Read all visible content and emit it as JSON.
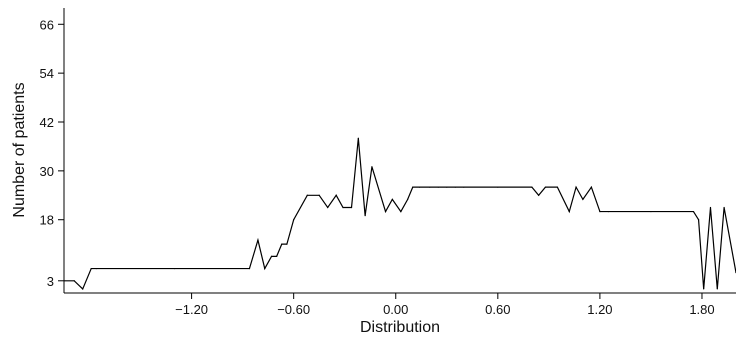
{
  "chart_data": {
    "type": "line",
    "title": "",
    "xlabel": "Distribution",
    "ylabel": "Number of patients",
    "xlim": [
      -1.95,
      2.0
    ],
    "ylim": [
      0,
      70
    ],
    "x_ticks": [
      -1.2,
      -0.6,
      0.0,
      0.6,
      1.2,
      1.8
    ],
    "x_tick_labels": [
      "−1.20",
      "−0.60",
      "0.00",
      "0.60",
      "1.20",
      "1.80"
    ],
    "y_ticks": [
      3,
      18,
      30,
      42,
      54,
      66
    ],
    "y_tick_labels": [
      "3",
      "18",
      "30",
      "42",
      "54",
      "66"
    ],
    "grid": false,
    "legend": "none",
    "line_color": "#000000",
    "series": [
      {
        "x": [
          -1.95,
          -1.89,
          -1.84,
          -1.79,
          -1.76,
          -1.3,
          -0.86,
          -0.81,
          -0.77,
          -0.73,
          -0.7,
          -0.67,
          -0.64,
          -0.6,
          -0.52,
          -0.45,
          -0.4,
          -0.35,
          -0.31,
          -0.26,
          -0.22,
          -0.18,
          -0.14,
          -0.06,
          -0.02,
          0.03,
          0.07,
          0.1,
          0.14,
          0.2,
          0.25,
          0.3,
          0.35,
          0.4,
          0.6,
          0.8,
          0.84,
          0.88,
          0.95,
          1.02,
          1.06,
          1.1,
          1.15,
          1.2,
          1.25,
          1.5,
          1.75,
          1.78,
          1.81,
          1.85,
          1.89,
          1.93,
          2.0
        ],
        "y": [
          3,
          3,
          1,
          6,
          6,
          6,
          6,
          13,
          6,
          9,
          9,
          12,
          12,
          18,
          24,
          24,
          21,
          24,
          21,
          21,
          38,
          19,
          31,
          20,
          23,
          20,
          23,
          26,
          26,
          26,
          26,
          26,
          26,
          26,
          26,
          26,
          24,
          26,
          26,
          20,
          26,
          23,
          26,
          20,
          20,
          20,
          20,
          18,
          1,
          21,
          1,
          21,
          5
        ]
      }
    ]
  }
}
